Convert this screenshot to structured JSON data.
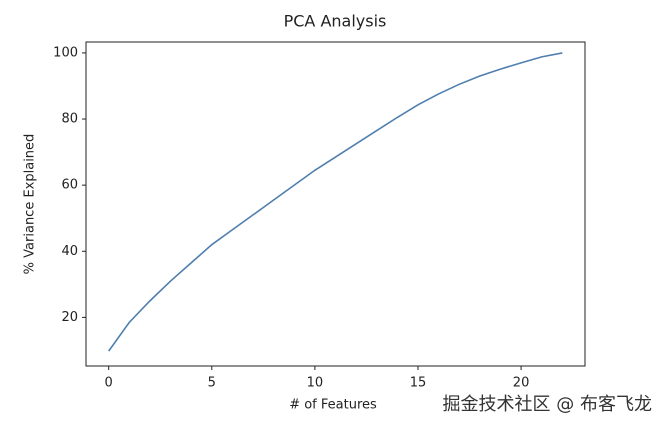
{
  "chart_data": {
    "type": "line",
    "title": "PCA Analysis",
    "x_label": "# of Features",
    "y_label": "% Variance Explained",
    "x": [
      0,
      1,
      2,
      3,
      4,
      5,
      6,
      7,
      8,
      9,
      10,
      11,
      12,
      13,
      14,
      15,
      16,
      17,
      18,
      19,
      20,
      21,
      22
    ],
    "series": [
      {
        "color": "#4f7faf",
        "values": [
          9.8,
          18.5,
          25,
          31,
          36.5,
          42,
          46.5,
          51,
          55.5,
          60,
          64.5,
          68.5,
          72.5,
          76.5,
          80.5,
          84.3,
          87.6,
          90.5,
          93,
          95.1,
          97,
          98.8,
          100
        ]
      }
    ],
    "xlim": [
      -1.1,
      23.1
    ],
    "xticks": [
      0,
      5,
      10,
      15,
      20
    ],
    "ylim": [
      5.3,
      103.3
    ],
    "yticks": [
      20,
      40,
      60,
      80,
      100
    ],
    "grid": false
  },
  "watermark": "掘金技术社区 @ 布客飞龙"
}
